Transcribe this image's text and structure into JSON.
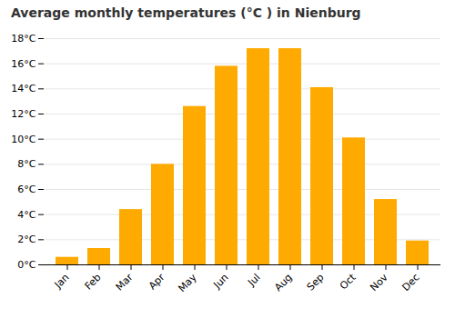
{
  "chart_data": {
    "type": "bar",
    "title": "Average monthly temperatures (°C ) in Nienburg",
    "categories": [
      "Jan",
      "Feb",
      "Mar",
      "Apr",
      "May",
      "Jun",
      "Jul",
      "Aug",
      "Sep",
      "Oct",
      "Nov",
      "Dec"
    ],
    "values": [
      0.6,
      1.3,
      4.4,
      8.0,
      12.6,
      15.8,
      17.2,
      17.2,
      14.1,
      10.1,
      5.2,
      1.9
    ],
    "color": "#FFAA00",
    "ylim": [
      0,
      18
    ],
    "yticks": [
      {
        "value": 0,
        "label": "0°C"
      },
      {
        "value": 2,
        "label": "2°C"
      },
      {
        "value": 4,
        "label": "4°C"
      },
      {
        "value": 6,
        "label": "6°C"
      },
      {
        "value": 8,
        "label": "8°C"
      },
      {
        "value": 10,
        "label": "10°C"
      },
      {
        "value": 12,
        "label": "12°C"
      },
      {
        "value": 14,
        "label": "14°C"
      },
      {
        "value": 16,
        "label": "16°C"
      },
      {
        "value": 18,
        "label": "18°C"
      }
    ],
    "grid": true
  }
}
